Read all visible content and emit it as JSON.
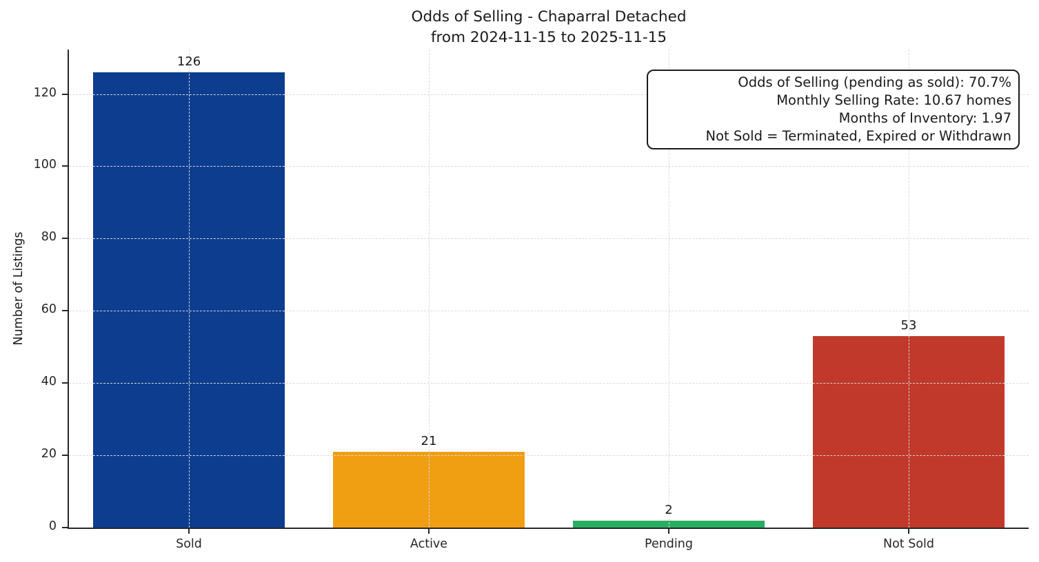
{
  "figure": {
    "background": "#ffffff"
  },
  "chart_data": {
    "type": "bar",
    "title": "Odds of Selling - Chaparral Detached",
    "subtitle": "from 2024-11-15 to 2025-11-15",
    "categories": [
      "Sold",
      "Active",
      "Pending",
      "Not Sold"
    ],
    "values": [
      126,
      21,
      2,
      53
    ],
    "bar_labels": [
      "126",
      "21",
      "2",
      "53"
    ],
    "bar_colors": [
      "#0d3d8f",
      "#f09e12",
      "#27ae60",
      "#c0392b"
    ],
    "xlabel": "",
    "ylabel": "Number of Listings",
    "ylim": [
      0,
      132.3
    ],
    "yticks": [
      0,
      20,
      40,
      60,
      80,
      100,
      120
    ],
    "grid": true,
    "grid_style": "dashed",
    "legend_position": "none",
    "annotation_lines": [
      "Odds of Selling (pending as sold): 70.7%",
      "Monthly Selling Rate: 10.67 homes",
      "Months of Inventory: 1.97",
      "Not Sold = Terminated, Expired or Withdrawn"
    ],
    "colors": {
      "axis": "#262626",
      "grid": "#d9d9d9",
      "text": "#1a1a1a",
      "background": "#ffffff"
    }
  }
}
